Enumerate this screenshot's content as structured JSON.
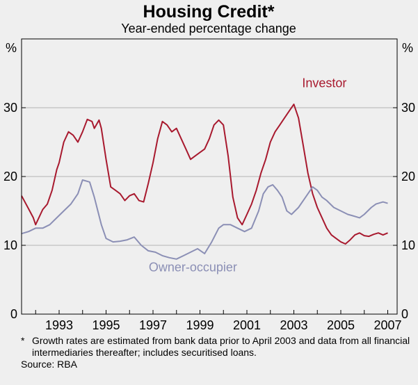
{
  "chart_data": {
    "type": "line",
    "title": "Housing Credit*",
    "subtitle": "Year-ended percentage change",
    "ylabel_left": "%",
    "ylabel_right": "%",
    "xlim": [
      1991.4,
      2007.4
    ],
    "ylim": [
      0,
      40
    ],
    "y_ticks": [
      0,
      10,
      20,
      30
    ],
    "y_tick_labels": [
      "0",
      "10",
      "20",
      "30"
    ],
    "x_ticks": [
      1993,
      1995,
      1997,
      1999,
      2001,
      2003,
      2005,
      2007
    ],
    "x_tick_labels": [
      "1993",
      "1995",
      "1997",
      "1999",
      "2001",
      "2003",
      "2005",
      "2007"
    ],
    "grid": true,
    "series": [
      {
        "name": "Investor",
        "color": "#a8192e",
        "x": [
          1991.4,
          1991.7,
          1991.9,
          1992.0,
          1992.3,
          1992.5,
          1992.7,
          1992.9,
          1993.0,
          1993.2,
          1993.4,
          1993.6,
          1993.8,
          1994.0,
          1994.2,
          1994.4,
          1994.5,
          1994.7,
          1994.8,
          1995.0,
          1995.2,
          1995.4,
          1995.6,
          1995.8,
          1996.0,
          1996.2,
          1996.4,
          1996.6,
          1996.8,
          1997.0,
          1997.2,
          1997.4,
          1997.6,
          1997.8,
          1998.0,
          1998.2,
          1998.4,
          1998.6,
          1998.8,
          1999.0,
          1999.2,
          1999.4,
          1999.6,
          1999.8,
          2000.0,
          2000.2,
          2000.4,
          2000.6,
          2000.8,
          2001.0,
          2001.2,
          2001.4,
          2001.6,
          2001.8,
          2002.0,
          2002.2,
          2002.4,
          2002.6,
          2002.8,
          2003.0,
          2003.2,
          2003.4,
          2003.6,
          2003.8,
          2004.0,
          2004.2,
          2004.4,
          2004.6,
          2004.8,
          2005.0,
          2005.2,
          2005.4,
          2005.6,
          2005.8,
          2006.0,
          2006.2,
          2006.4,
          2006.6,
          2006.8,
          2007.0
        ],
        "values": [
          17.2,
          15.3,
          14.0,
          13.0,
          15.2,
          16.0,
          18.0,
          21.0,
          22.0,
          25.0,
          26.5,
          26.0,
          25.0,
          26.5,
          28.3,
          28.0,
          27.0,
          28.2,
          27.0,
          22.5,
          18.5,
          18.0,
          17.5,
          16.5,
          17.2,
          17.5,
          16.5,
          16.3,
          19.0,
          22.0,
          25.5,
          28.0,
          27.5,
          26.5,
          27.0,
          25.5,
          24.0,
          22.5,
          23.0,
          23.5,
          24.0,
          25.5,
          27.5,
          28.2,
          27.5,
          23.0,
          17.0,
          14.0,
          13.0,
          14.5,
          16.0,
          18.0,
          20.5,
          22.5,
          25.0,
          26.5,
          27.5,
          28.5,
          29.5,
          30.5,
          28.5,
          24.5,
          20.5,
          17.5,
          15.5,
          14.0,
          12.5,
          11.5,
          11.0,
          10.5,
          10.2,
          10.8,
          11.5,
          11.8,
          11.4,
          11.3,
          11.6,
          11.8,
          11.5,
          11.8
        ]
      },
      {
        "name": "Owner-occupier",
        "color": "#8b8fb5",
        "x": [
          1991.4,
          1991.7,
          1992.0,
          1992.3,
          1992.6,
          1992.9,
          1993.2,
          1993.5,
          1993.8,
          1994.0,
          1994.3,
          1994.5,
          1994.8,
          1995.0,
          1995.3,
          1995.6,
          1995.9,
          1996.2,
          1996.5,
          1996.8,
          1997.1,
          1997.4,
          1997.7,
          1998.0,
          1998.3,
          1998.6,
          1998.9,
          1999.2,
          1999.5,
          1999.8,
          2000.0,
          2000.3,
          2000.6,
          2000.9,
          2001.2,
          2001.5,
          2001.7,
          2001.9,
          2002.1,
          2002.3,
          2002.5,
          2002.7,
          2002.9,
          2003.2,
          2003.5,
          2003.8,
          2004.0,
          2004.2,
          2004.4,
          2004.7,
          2005.0,
          2005.3,
          2005.5,
          2005.8,
          2006.0,
          2006.3,
          2006.5,
          2006.8,
          2007.0
        ],
        "values": [
          11.7,
          12.0,
          12.5,
          12.5,
          13.0,
          14.0,
          15.0,
          16.0,
          17.5,
          19.5,
          19.2,
          17.0,
          13.0,
          11.0,
          10.5,
          10.6,
          10.8,
          11.2,
          10.0,
          9.2,
          9.0,
          8.5,
          8.2,
          8.0,
          8.5,
          9.0,
          9.5,
          8.8,
          10.5,
          12.5,
          13.0,
          13.0,
          12.5,
          12.0,
          12.5,
          15.0,
          17.5,
          18.5,
          18.8,
          18.0,
          17.0,
          15.0,
          14.5,
          15.5,
          17.0,
          18.5,
          18.0,
          17.0,
          16.5,
          15.5,
          15.0,
          14.5,
          14.3,
          14.0,
          14.5,
          15.5,
          16.0,
          16.3,
          16.1
        ]
      }
    ],
    "annotations": [
      {
        "series": "Investor",
        "text": "Investor",
        "x": 2004.3,
        "y": 33.0,
        "color": "#a8192e"
      },
      {
        "series": "Owner-occupier",
        "text": "Owner-occupier",
        "x": 1998.7,
        "y": 6.2,
        "color": "#8b8fb5"
      }
    ]
  },
  "footnote": {
    "marker": "*",
    "text": "Growth rates are estimated from bank data prior to April 2003 and data from all financial intermediaries thereafter; includes securitised loans.",
    "source": "Source: RBA"
  },
  "colors": {
    "background": "#efefef",
    "plot_background": "#efefef",
    "grid": "#b3b3b3",
    "axis": "#000000"
  }
}
